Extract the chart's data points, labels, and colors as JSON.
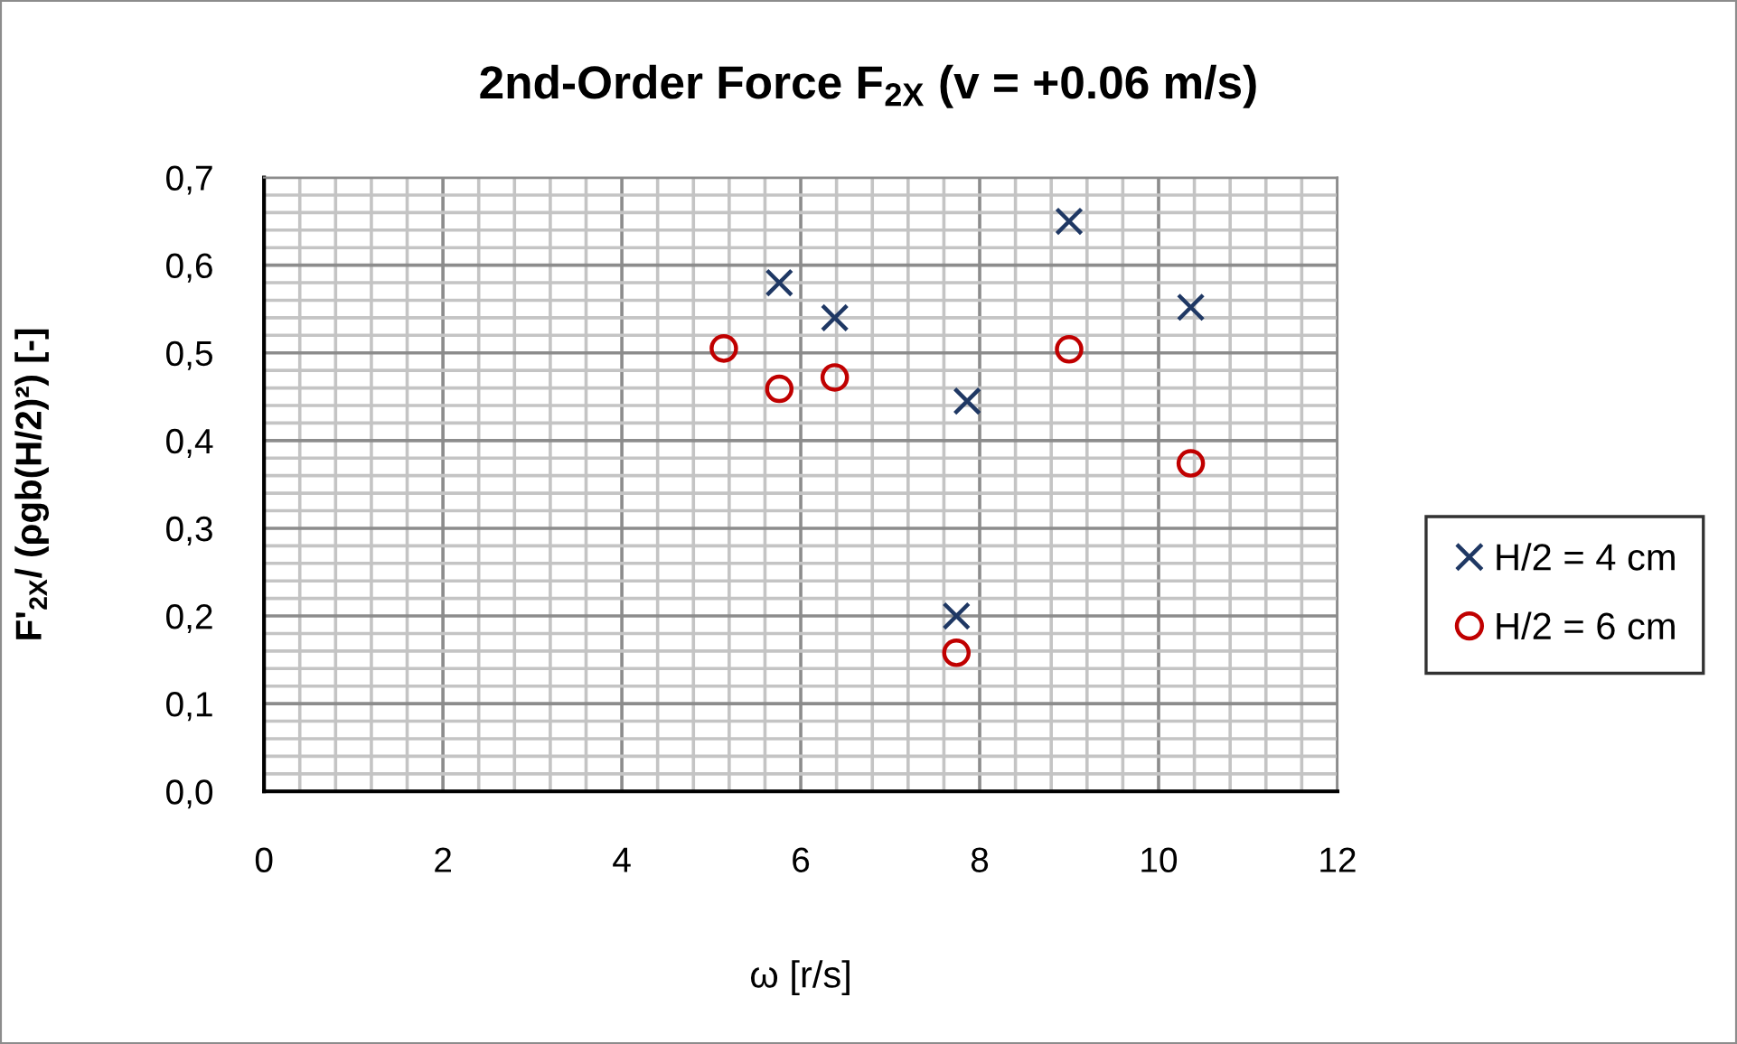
{
  "chart_data": {
    "type": "scatter",
    "title": "2nd-Order Force F$_{2X}$ (v = +0.06 m/s)",
    "xlabel": "ω [r/s]",
    "ylabel": "F'$_{2X}$/ (ρgb(H/2)²) [-]",
    "series": [
      {
        "name": "H/2 = 4 cm",
        "color": "#1f3864",
        "marker": "cross",
        "x": [
          5.76,
          6.38,
          7.74,
          7.86,
          9.0,
          10.36
        ],
        "values": [
          0.58,
          0.54,
          0.2,
          0.445,
          0.65,
          0.552
        ]
      },
      {
        "name": "H/2 = 6 cm",
        "color": "#c00000",
        "marker": "circle",
        "x": [
          5.14,
          5.76,
          6.38,
          7.74,
          9.0,
          10.36
        ],
        "values": [
          0.505,
          0.459,
          0.472,
          0.158,
          0.504,
          0.374
        ]
      }
    ],
    "xlim": [
      0,
      12
    ],
    "xticks": [
      0,
      {
        "value": 0.4,
        "label": null
      },
      {
        "value": 0.8,
        "label": null
      },
      {
        "value": 1.2,
        "label": null
      },
      {
        "value": 1.6,
        "label": null
      },
      2,
      {
        "value": 2.4,
        "label": null
      },
      {
        "value": 2.8,
        "label": null
      },
      {
        "value": 3.2,
        "label": null
      },
      {
        "value": 3.6,
        "label": null
      },
      4,
      {
        "value": 4.4,
        "label": null
      },
      {
        "value": 4.8,
        "label": null
      },
      {
        "value": 5.2,
        "label": null
      },
      {
        "value": 5.6,
        "label": null
      },
      6,
      {
        "value": 6.4,
        "label": null
      },
      {
        "value": 6.8,
        "label": null
      },
      {
        "value": 7.2,
        "label": null
      },
      {
        "value": 7.6,
        "label": null
      },
      8,
      {
        "value": 8.4,
        "label": null
      },
      {
        "value": 8.8,
        "label": null
      },
      {
        "value": 9.2,
        "label": null
      },
      {
        "value": 9.6,
        "label": null
      },
      10,
      {
        "value": 10.4,
        "label": null
      },
      {
        "value": 10.8,
        "label": null
      },
      {
        "value": 11.2,
        "label": null
      },
      {
        "value": 11.6,
        "label": null
      },
      12
    ],
    "ylim": [
      0,
      0.7
    ],
    "yticks": [
      {
        "value": 0,
        "label": "0,0"
      },
      {
        "value": 0.02,
        "label": null
      },
      {
        "value": 0.04,
        "label": null
      },
      {
        "value": 0.06,
        "label": null
      },
      {
        "value": 0.08,
        "label": null
      },
      {
        "value": 0.1,
        "label": "0,1"
      },
      {
        "value": 0.12,
        "label": null
      },
      {
        "value": 0.14,
        "label": null
      },
      {
        "value": 0.16,
        "label": null
      },
      {
        "value": 0.18,
        "label": null
      },
      {
        "value": 0.2,
        "label": "0,2"
      },
      {
        "value": 0.22,
        "label": null
      },
      {
        "value": 0.24,
        "label": null
      },
      {
        "value": 0.26,
        "label": null
      },
      {
        "value": 0.28,
        "label": null
      },
      {
        "value": 0.3,
        "label": "0,3"
      },
      {
        "value": 0.32,
        "label": null
      },
      {
        "value": 0.34,
        "label": null
      },
      {
        "value": 0.36,
        "label": null
      },
      {
        "value": 0.38,
        "label": null
      },
      {
        "value": 0.4,
        "label": "0,4"
      },
      {
        "value": 0.42,
        "label": null
      },
      {
        "value": 0.44,
        "label": null
      },
      {
        "value": 0.46,
        "label": null
      },
      {
        "value": 0.48,
        "label": null
      },
      {
        "value": 0.5,
        "label": "0,5"
      },
      {
        "value": 0.52,
        "label": null
      },
      {
        "value": 0.54,
        "label": null
      },
      {
        "value": 0.56,
        "label": null
      },
      {
        "value": 0.58,
        "label": null
      },
      {
        "value": 0.6,
        "label": "0,6"
      },
      {
        "value": 0.62,
        "label": null
      },
      {
        "value": 0.64,
        "label": null
      },
      {
        "value": 0.66,
        "label": null
      },
      {
        "value": 0.68,
        "label": null
      },
      {
        "value": 0.7,
        "label": "0,7"
      }
    ],
    "grid": true,
    "legend": "right"
  }
}
